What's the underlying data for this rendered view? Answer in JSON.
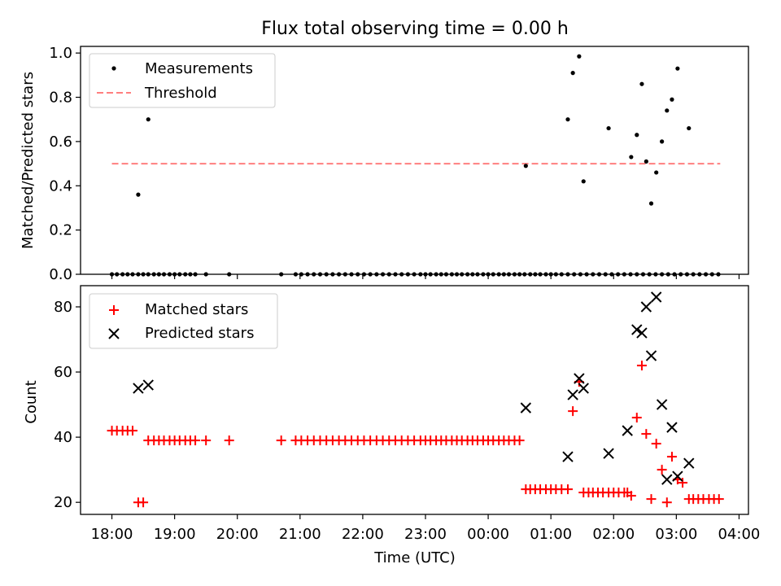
{
  "title": "Flux total observing time = 0.00 h",
  "colors": {
    "measurement": "#000000",
    "threshold": "#ff7f7f",
    "matched": "#ff0000",
    "predicted": "#000000"
  },
  "chart_data": [
    {
      "type": "scatter",
      "ylabel": "Matched/Predicted stars",
      "xlim": [
        -0.5,
        10.15
      ],
      "ylim": [
        0,
        1.03
      ],
      "yticks": [
        0,
        0.2,
        0.4,
        0.6,
        0.8,
        1.0
      ],
      "ytick_labels": [
        "0.0",
        "0.2",
        "0.4",
        "0.6",
        "0.8",
        "1.0"
      ],
      "threshold": {
        "value": 0.5,
        "x_start": 0.0,
        "x_end": 9.7
      },
      "legend": [
        {
          "label": "Measurements",
          "marker": "dot"
        },
        {
          "label": "Threshold",
          "marker": "dashed-line"
        }
      ],
      "series": [
        {
          "name": "Measurements",
          "x": [
            0.0,
            0.08,
            0.17,
            0.25,
            0.33,
            0.42,
            0.5,
            0.58,
            0.67,
            0.75,
            0.83,
            0.92,
            1.0,
            1.08,
            1.17,
            1.25,
            1.33,
            1.5,
            1.87,
            2.7,
            2.93,
            3.02,
            3.12,
            3.22,
            3.32,
            3.42,
            3.52,
            3.62,
            3.72,
            3.82,
            3.92,
            4.02,
            4.12,
            4.22,
            4.32,
            4.42,
            4.52,
            4.62,
            4.72,
            4.82,
            4.92,
            5.0,
            5.08,
            5.17,
            5.25,
            5.33,
            5.42,
            5.5,
            5.58,
            5.67,
            5.75,
            5.83,
            5.92,
            6.0,
            6.08,
            6.17,
            6.25,
            6.33,
            6.42,
            6.5,
            6.58,
            6.67,
            6.75,
            6.83,
            6.92,
            7.0,
            7.08,
            7.17,
            7.27,
            7.37,
            7.47,
            7.57,
            7.67,
            7.77,
            7.87,
            7.97,
            8.07,
            8.17,
            8.27,
            8.37,
            8.47,
            8.57,
            8.67,
            8.77,
            8.87,
            8.97,
            9.07,
            9.17,
            9.27,
            9.37,
            9.47,
            9.57,
            9.67,
            0.42,
            0.58,
            6.6,
            7.27,
            7.35,
            7.45,
            7.52,
            7.92,
            8.28,
            8.37,
            8.45,
            8.52,
            8.6,
            8.68,
            8.77,
            8.85,
            8.93,
            9.02,
            9.2
          ],
          "y": [
            0,
            0,
            0,
            0,
            0,
            0,
            0,
            0,
            0,
            0,
            0,
            0,
            0,
            0,
            0,
            0,
            0,
            0,
            0,
            0,
            0,
            0,
            0,
            0,
            0,
            0,
            0,
            0,
            0,
            0,
            0,
            0,
            0,
            0,
            0,
            0,
            0,
            0,
            0,
            0,
            0,
            0,
            0,
            0,
            0,
            0,
            0,
            0,
            0,
            0,
            0,
            0,
            0,
            0,
            0,
            0,
            0,
            0,
            0,
            0,
            0,
            0,
            0,
            0,
            0,
            0,
            0,
            0,
            0,
            0,
            0,
            0,
            0,
            0,
            0,
            0,
            0,
            0,
            0,
            0,
            0,
            0,
            0,
            0,
            0,
            0,
            0,
            0,
            0,
            0,
            0,
            0,
            0,
            0.36,
            0.7,
            0.49,
            0.7,
            0.91,
            0.985,
            0.42,
            0.66,
            0.53,
            0.63,
            0.86,
            0.51,
            0.32,
            0.46,
            0.6,
            0.74,
            0.79,
            0.93,
            0.66
          ]
        }
      ]
    },
    {
      "type": "scatter",
      "ylabel": "Count",
      "xlabel": "Time (UTC)",
      "xlim": [
        -0.5,
        10.15
      ],
      "ylim": [
        16.3,
        86.5
      ],
      "yticks": [
        20,
        40,
        60,
        80
      ],
      "ytick_labels": [
        "20",
        "40",
        "60",
        "80"
      ],
      "xticks": [
        0,
        1,
        2,
        3,
        4,
        5,
        6,
        7,
        8,
        9,
        10
      ],
      "xtick_labels": [
        "18:00",
        "19:00",
        "20:00",
        "21:00",
        "22:00",
        "23:00",
        "00:00",
        "01:00",
        "02:00",
        "03:00",
        "04:00"
      ],
      "legend": [
        {
          "label": "Matched stars",
          "marker": "plus"
        },
        {
          "label": "Predicted stars",
          "marker": "x"
        }
      ],
      "series": [
        {
          "name": "Matched stars",
          "x": [
            0.0,
            0.08,
            0.17,
            0.25,
            0.33,
            0.42,
            0.5,
            0.58,
            0.67,
            0.75,
            0.83,
            0.92,
            1.0,
            1.08,
            1.17,
            1.25,
            1.33,
            1.5,
            1.87,
            2.7,
            2.93,
            3.02,
            3.12,
            3.22,
            3.32,
            3.42,
            3.52,
            3.62,
            3.72,
            3.82,
            3.92,
            4.02,
            4.12,
            4.22,
            4.32,
            4.42,
            4.52,
            4.62,
            4.72,
            4.82,
            4.92,
            5.0,
            5.08,
            5.17,
            5.25,
            5.33,
            5.42,
            5.5,
            5.58,
            5.67,
            5.75,
            5.83,
            5.92,
            6.0,
            6.08,
            6.17,
            6.25,
            6.33,
            6.42,
            6.5,
            6.6,
            6.67,
            6.75,
            6.83,
            6.92,
            7.0,
            7.08,
            7.17,
            7.27,
            7.35,
            7.45,
            7.52,
            7.6,
            7.67,
            7.75,
            7.83,
            7.92,
            8.0,
            8.08,
            8.17,
            8.22,
            8.28,
            8.37,
            8.45,
            8.52,
            8.6,
            8.68,
            8.77,
            8.85,
            8.93,
            9.02,
            9.1,
            9.2,
            9.27,
            9.35,
            9.43,
            9.52,
            9.6,
            9.68
          ],
          "y": [
            42,
            42,
            42,
            42,
            42,
            20,
            20,
            39,
            39,
            39,
            39,
            39,
            39,
            39,
            39,
            39,
            39,
            39,
            39,
            39,
            39,
            39,
            39,
            39,
            39,
            39,
            39,
            39,
            39,
            39,
            39,
            39,
            39,
            39,
            39,
            39,
            39,
            39,
            39,
            39,
            39,
            39,
            39,
            39,
            39,
            39,
            39,
            39,
            39,
            39,
            39,
            39,
            39,
            39,
            39,
            39,
            39,
            39,
            39,
            39,
            24,
            24,
            24,
            24,
            24,
            24,
            24,
            24,
            24,
            48,
            57,
            23,
            23,
            23,
            23,
            23,
            23,
            23,
            23,
            23,
            23,
            22,
            46,
            62,
            41,
            21,
            38,
            30,
            20,
            34,
            27,
            26,
            21,
            21,
            21,
            21,
            21,
            21,
            21
          ]
        },
        {
          "name": "Predicted stars",
          "x": [
            0.42,
            0.58,
            6.6,
            7.27,
            7.35,
            7.45,
            7.52,
            7.92,
            8.22,
            8.37,
            8.45,
            8.52,
            8.6,
            8.68,
            8.77,
            8.85,
            8.93,
            9.02,
            9.2
          ],
          "y": [
            55,
            56,
            49,
            34,
            53,
            58,
            55,
            35,
            42,
            73,
            72,
            80,
            65,
            83,
            50,
            27,
            43,
            28,
            32
          ]
        }
      ]
    }
  ]
}
